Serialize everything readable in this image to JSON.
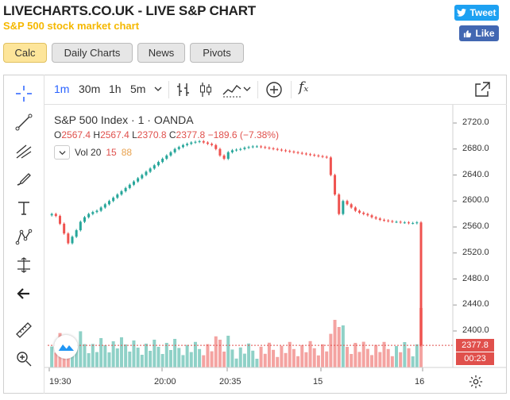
{
  "header": {
    "title": "LIVECHARTS.CO.UK - LIVE S&P CHART",
    "subtitle": "S&P 500 stock market chart",
    "tweet_label": "Tweet",
    "like_label": "Like"
  },
  "tabs": [
    {
      "label": "Calc",
      "active": true
    },
    {
      "label": "Daily Charts",
      "active": false
    },
    {
      "label": "News",
      "active": false
    },
    {
      "label": "Pivots",
      "active": false
    }
  ],
  "toolbar": {
    "timeframes": [
      "1m",
      "30m",
      "1h",
      "5m"
    ],
    "active_timeframe": "1m",
    "fx_label": "fₓ"
  },
  "legend": {
    "title": "S&P 500 Index · 1 · OANDA",
    "o_label": "O",
    "o": "2567.4",
    "h_label": "H",
    "h": "2567.4",
    "l_label": "L",
    "l": "2370.8",
    "c_label": "C",
    "c": "2377.8",
    "change": "−189.6 (−7.38%)",
    "vol_label": "Vol 20",
    "vol_a": "15",
    "vol_b": "88"
  },
  "price_axis": [
    "2720.0",
    "2680.0",
    "2640.0",
    "2600.0",
    "2560.0",
    "2520.0",
    "2480.0",
    "2440.0",
    "2400.0"
  ],
  "time_axis": [
    "19:30",
    "20:00",
    "20:35",
    "15",
    "16"
  ],
  "current_price": "2377.8",
  "countdown": "00:23",
  "colors": {
    "up": "#26a69a",
    "down": "#ef5350",
    "vol_up": "#8fd1c7",
    "vol_down": "#f4a3a1",
    "accent": "#2962ff"
  },
  "chart_data": {
    "type": "candlestick",
    "ylim": [
      2400,
      2720
    ],
    "close_series": [
      2578,
      2580,
      2577,
      2565,
      2550,
      2535,
      2545,
      2555,
      2568,
      2575,
      2580,
      2583,
      2585,
      2590,
      2595,
      2600,
      2605,
      2610,
      2615,
      2620,
      2625,
      2630,
      2635,
      2640,
      2645,
      2650,
      2655,
      2660,
      2665,
      2670,
      2675,
      2680,
      2683,
      2686,
      2688,
      2690,
      2691,
      2692,
      2690,
      2688,
      2686,
      2680,
      2670,
      2665,
      2675,
      2678,
      2679,
      2680,
      2682,
      2683,
      2684,
      2684,
      2683,
      2682,
      2681,
      2680,
      2679,
      2678,
      2677,
      2676,
      2675,
      2674,
      2673,
      2672,
      2671,
      2670,
      2669,
      2668,
      2667,
      2640,
      2610,
      2580,
      2600,
      2595,
      2590,
      2585,
      2582,
      2580,
      2578,
      2575,
      2573,
      2571,
      2570,
      2569,
      2568,
      2568,
      2567,
      2567,
      2566,
      2566,
      2567,
      2377.8
    ]
  }
}
